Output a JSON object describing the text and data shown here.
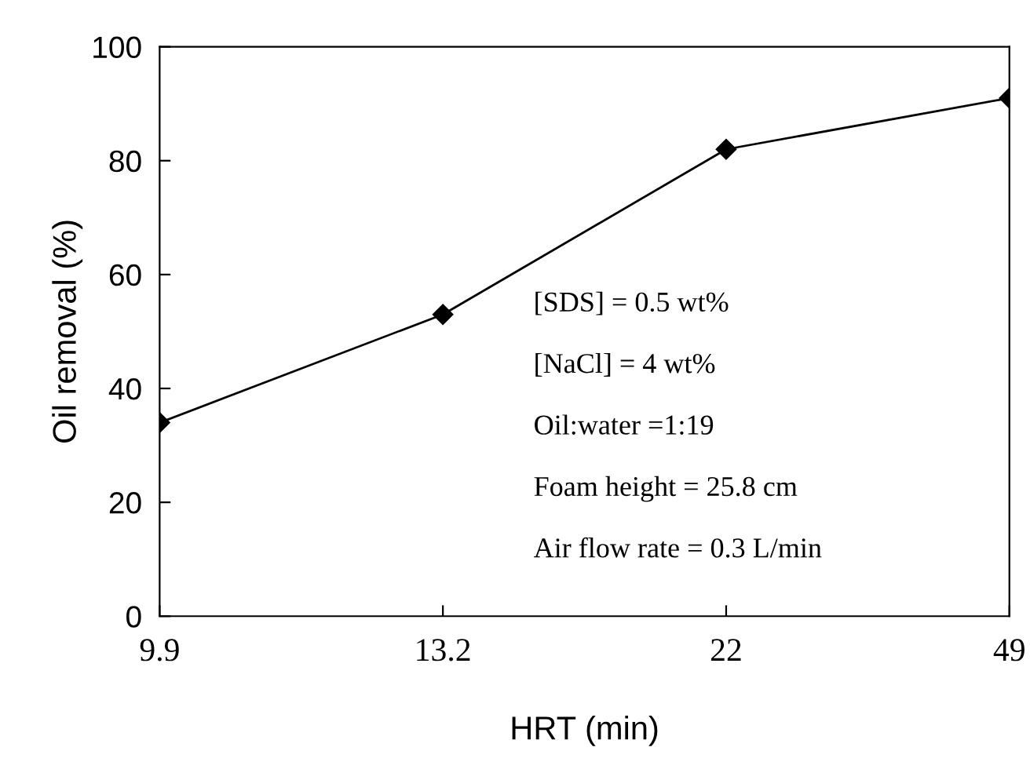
{
  "chart_data": {
    "type": "line",
    "xlabel": "HRT (min)",
    "ylabel": "Oil removal (%)",
    "categories": [
      "9.9",
      "13.2",
      "22",
      "49"
    ],
    "series": [
      {
        "color": "#000000",
        "values": [
          34,
          53,
          82,
          91
        ]
      }
    ],
    "ylim": [
      0,
      100
    ],
    "yticks": [
      0,
      20,
      40,
      60,
      80,
      100
    ],
    "marker": "diamond",
    "line_style": "solid",
    "grid": false,
    "legend": false,
    "annotations": [
      "[SDS] = 0.5 wt%",
      "[NaCl] = 4 wt%",
      "Oil:water =1:19",
      "Foam height = 25.8 cm",
      "Air flow rate = 0.3 L/min"
    ]
  }
}
